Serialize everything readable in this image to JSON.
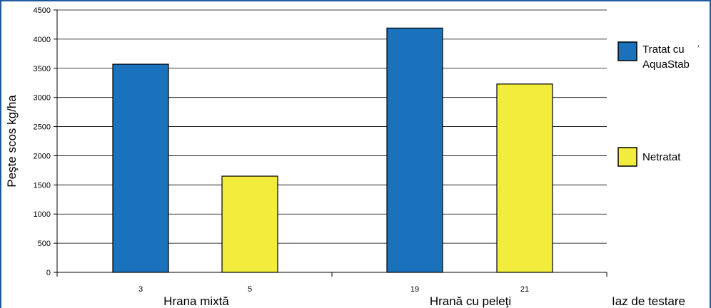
{
  "chart_data": {
    "type": "bar",
    "ylabel": "Peşte scos kg/ha",
    "ylim": [
      0,
      4500
    ],
    "yticks": [
      "0",
      "500",
      "1000",
      "1500",
      "2000",
      "2500",
      "3000",
      "3500",
      "4000",
      "4500"
    ],
    "grid": true,
    "categories": [
      "3",
      "5",
      "19",
      "21"
    ],
    "values": [
      3570,
      1650,
      4190,
      3230
    ],
    "bar_series": [
      "Tratat cu AquaStab",
      "Netratat",
      "Tratat cu AquaStab",
      "Netratat"
    ],
    "groups": [
      "Hrana mixtă",
      "Hrană cu peleţi"
    ],
    "xlabel": "Iaz de testare",
    "series": [
      {
        "name": "Tratat cu AquaStab",
        "color": "#1a72bd"
      },
      {
        "name": "Netratat",
        "color": "#f2ec3d"
      }
    ],
    "legend_placement": "right",
    "legend": {
      "item1_line1": "Tratat cu",
      "item1_line2": "AquaStab",
      "item1_mark": "›",
      "item2": "Netratat"
    }
  }
}
